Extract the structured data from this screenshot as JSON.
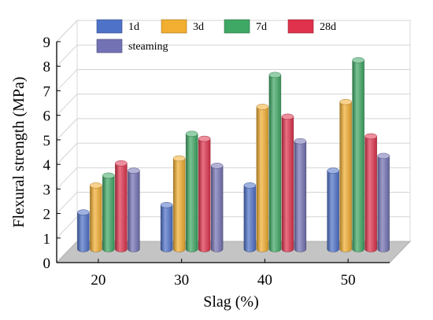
{
  "chart_data": {
    "type": "bar",
    "xlabel": "Slag (%)",
    "ylabel": "Flexural strength (MPa)",
    "categories": [
      "20",
      "30",
      "40",
      "50"
    ],
    "ylim": [
      0,
      9
    ],
    "yticks": [
      0,
      1,
      2,
      3,
      4,
      5,
      6,
      7,
      8,
      9
    ],
    "grid": true,
    "legend_position": "top",
    "series": [
      {
        "name": "1d",
        "color": "#4f72c9",
        "values": [
          1.5,
          1.8,
          2.6,
          3.2
        ]
      },
      {
        "name": "3d",
        "color": "#f2ae30",
        "values": [
          2.6,
          3.7,
          5.8,
          6.0
        ]
      },
      {
        "name": "7d",
        "color": "#3fa864",
        "values": [
          3.0,
          4.7,
          7.1,
          7.7
        ]
      },
      {
        "name": "28d",
        "color": "#e0324c",
        "values": [
          3.5,
          4.5,
          5.4,
          4.6
        ]
      },
      {
        "name": "steaming",
        "color": "#7372b4",
        "values": [
          3.2,
          3.4,
          4.4,
          3.8
        ]
      }
    ]
  }
}
